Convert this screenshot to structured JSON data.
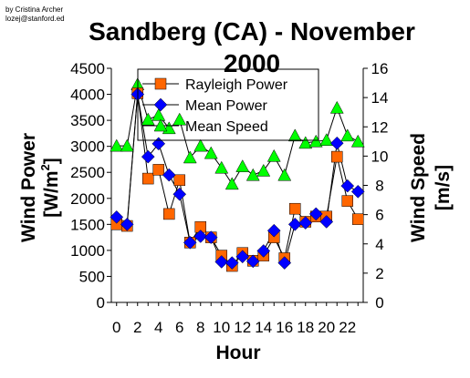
{
  "credit": {
    "line1": "by Cristina Archer",
    "line2": "lozej@stanford.ed"
  },
  "chart_data": {
    "type": "line",
    "title_line1": "Sandberg (CA) - November",
    "title_line2": "2000",
    "xlabel": "Hour",
    "ylabel_left": "Wind Power [W/m2]",
    "ylabel_left_main": "Wind Power",
    "ylabel_left_unit_pre": "[W/m",
    "ylabel_left_unit_sup": "2",
    "ylabel_left_unit_post": "]",
    "ylabel_right": "Wind Speed [m/s]",
    "ylabel_right_main": "Wind Speed",
    "ylabel_right_unit": "[m/s]",
    "xlim": [
      -0.5,
      23.5
    ],
    "xticks": [
      0,
      2,
      4,
      6,
      8,
      10,
      12,
      14,
      16,
      18,
      20,
      22
    ],
    "ylim_left": [
      0,
      4500
    ],
    "yticks_left": [
      0,
      500,
      1000,
      1500,
      2000,
      2500,
      3000,
      3500,
      4000,
      4500
    ],
    "ylim_right": [
      0,
      16
    ],
    "yticks_right": [
      0,
      2,
      4,
      6,
      8,
      10,
      12,
      14,
      16
    ],
    "grid": false,
    "legend_position": "top-center",
    "x": [
      0,
      1,
      2,
      3,
      4,
      5,
      6,
      7,
      8,
      9,
      10,
      11,
      12,
      13,
      14,
      15,
      16,
      17,
      18,
      19,
      20,
      21,
      22,
      23
    ],
    "series": [
      {
        "name": "Rayleigh Power",
        "axis": "left",
        "marker": "square",
        "color": "#ff6600",
        "values": [
          1500,
          1470,
          4020,
          2380,
          2550,
          1700,
          2350,
          1150,
          1450,
          1250,
          900,
          700,
          950,
          800,
          900,
          1250,
          850,
          1800,
          1550,
          1650,
          1650,
          2800,
          1950,
          1600
        ]
      },
      {
        "name": "Mean Power",
        "axis": "left",
        "marker": "diamond",
        "color": "#0000ff",
        "values": [
          1640,
          1500,
          4000,
          2800,
          3050,
          2450,
          2080,
          1150,
          1270,
          1250,
          780,
          760,
          880,
          790,
          990,
          1380,
          760,
          1500,
          1530,
          1700,
          1550,
          3060,
          2240,
          2130
        ]
      },
      {
        "name": "Mean Speed",
        "axis": "right",
        "marker": "triangle",
        "color": "#00ff00",
        "values": [
          10.7,
          10.7,
          14.9,
          12.5,
          12.8,
          11.9,
          12.5,
          9.9,
          10.7,
          10.2,
          9.2,
          8.1,
          9.3,
          8.7,
          9.0,
          10.0,
          8.7,
          11.4,
          10.9,
          11.0,
          11.1,
          13.3,
          11.4,
          11.0
        ]
      }
    ]
  },
  "colors": {
    "background": "#ffffff",
    "line": "#000000",
    "rayleigh_fill": "#ff6600",
    "mean_power_fill": "#0000ff",
    "mean_speed_fill": "#00ff00"
  }
}
